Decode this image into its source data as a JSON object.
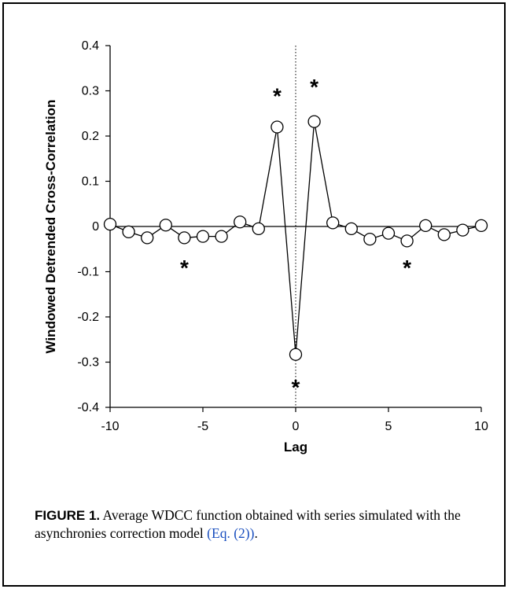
{
  "chart_data": {
    "type": "line",
    "xlabel": "Lag",
    "ylabel": "Windowed Detrended Cross-Correlation",
    "xlim": [
      -10,
      10
    ],
    "ylim": [
      -0.4,
      0.4
    ],
    "x_ticks": [
      -10,
      -5,
      0,
      5,
      10
    ],
    "x_tick_labels": [
      "-10",
      "-5",
      "0",
      "5",
      "10"
    ],
    "y_ticks": [
      0.4,
      0.3,
      0.2,
      0.1,
      0,
      -0.1,
      -0.2,
      -0.3,
      -0.4
    ],
    "y_tick_labels": [
      "0.4",
      "0.3",
      "0.2",
      "0.1",
      "0",
      "-0.1",
      "-0.2",
      "-0.3",
      "-0.4"
    ],
    "grid": false,
    "zero_line": true,
    "vertical_dotted_line_at_x": 0,
    "series": [
      {
        "marker": "open-circle",
        "x": [
          -10,
          -9,
          -8,
          -7,
          -6,
          -5,
          -4,
          -3,
          -2,
          -1,
          0,
          1,
          2,
          3,
          4,
          5,
          6,
          7,
          8,
          9,
          10
        ],
        "y": [
          0.005,
          -0.012,
          -0.025,
          0.003,
          -0.025,
          -0.022,
          -0.022,
          0.01,
          -0.005,
          0.22,
          -0.283,
          0.232,
          0.008,
          -0.005,
          -0.028,
          -0.015,
          -0.032,
          0.002,
          -0.018,
          -0.008,
          0.002
        ]
      }
    ],
    "annotations": [
      {
        "text": "*",
        "x": -6,
        "y": -0.09
      },
      {
        "text": "*",
        "x": -1,
        "y": 0.29
      },
      {
        "text": "*",
        "x": 0,
        "y": -0.355
      },
      {
        "text": "*",
        "x": 1,
        "y": 0.31
      },
      {
        "text": "*",
        "x": 6,
        "y": -0.09
      }
    ]
  },
  "caption": {
    "label": "FIGURE 1.",
    "text": " Average WDCC function obtained with series simulated with the asynchronies correction model ",
    "ref": "(Eq. (2))",
    "end": "."
  }
}
